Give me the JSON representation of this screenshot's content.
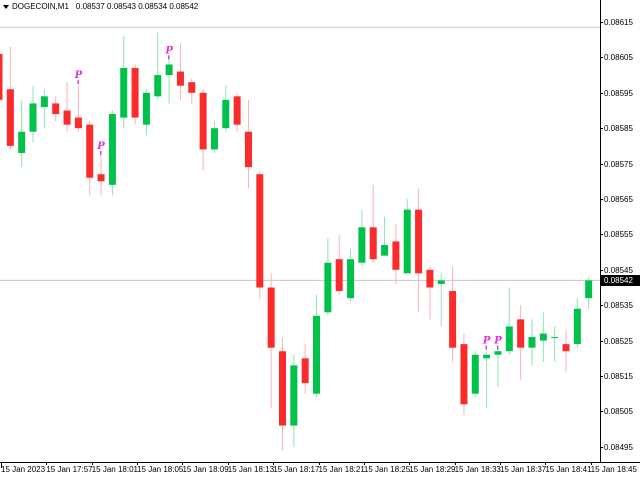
{
  "window": {
    "title": "DOGECOIN,M1",
    "quote_line": "0.08537 0.08543 0.08534 0.08542"
  },
  "colors": {
    "background": "#ffffff",
    "bull_body": "#00c24a",
    "bull_wick": "#8fe6ad",
    "bear_body": "#fa2b2b",
    "bear_wick": "#f9b3b8",
    "marker": "#dd33dd",
    "bid_line": "#c4c7cc",
    "upper_line": "#cbced3",
    "axis": "#000000",
    "bid_box_bg": "#000000",
    "bid_box_text": "#ffffff"
  },
  "chart_data": {
    "type": "candlestick",
    "symbol": "DOGECOIN",
    "timeframe": "M1",
    "title": "DOGECOIN,M1",
    "quote_ohlc": {
      "open": "0.08537",
      "high": "0.08543",
      "low": "0.08534",
      "close": "0.08542"
    },
    "bid": 0.08542,
    "bid_label": "0.08542",
    "upper_level_line": 0.086135,
    "price_axis": {
      "min": 0.08495,
      "max": 0.08615,
      "step": 0.0001,
      "labels": [
        "0.08615",
        "0.08605",
        "0.08595",
        "0.08585",
        "0.08575",
        "0.08565",
        "0.08555",
        "0.08545",
        "0.08535",
        "0.08525",
        "0.08515",
        "0.08505",
        "0.08495"
      ]
    },
    "time_axis": [
      {
        "label": "15 Jan 2023",
        "bar": 0,
        "date": true
      },
      {
        "label": "15 Jan 17:57",
        "bar": 4
      },
      {
        "label": "15 Jan 18:01",
        "bar": 8
      },
      {
        "label": "15 Jan 18:05",
        "bar": 12
      },
      {
        "label": "15 Jan 18:09",
        "bar": 16
      },
      {
        "label": "15 Jan 18:13",
        "bar": 20
      },
      {
        "label": "15 Jan 18:17",
        "bar": 24
      },
      {
        "label": "15 Jan 18:21",
        "bar": 28
      },
      {
        "label": "15 Jan 18:25",
        "bar": 32
      },
      {
        "label": "15 Jan 18:29",
        "bar": 36
      },
      {
        "label": "15 Jan 18:33",
        "bar": 40
      },
      {
        "label": "15 Jan 18:37",
        "bar": 44
      },
      {
        "label": "15 Jan 18:41",
        "bar": 48
      },
      {
        "label": "15 Jan 18:45",
        "bar": 52
      }
    ],
    "candles": [
      {
        "t": "17:53",
        "o": 0.08606,
        "h": 0.08607,
        "l": 0.0859,
        "c": 0.08593
      },
      {
        "t": "17:54",
        "o": 0.08596,
        "h": 0.08608,
        "l": 0.08579,
        "c": 0.0858
      },
      {
        "t": "17:55",
        "o": 0.08578,
        "h": 0.08593,
        "l": 0.08574,
        "c": 0.08584
      },
      {
        "t": "17:56",
        "o": 0.08584,
        "h": 0.08597,
        "l": 0.08581,
        "c": 0.08592
      },
      {
        "t": "17:57",
        "o": 0.08591,
        "h": 0.08596,
        "l": 0.08585,
        "c": 0.08594
      },
      {
        "t": "17:58",
        "o": 0.08592,
        "h": 0.08594,
        "l": 0.08587,
        "c": 0.08589
      },
      {
        "t": "17:59",
        "o": 0.0859,
        "h": 0.08598,
        "l": 0.08584,
        "c": 0.08586
      },
      {
        "t": "18:00",
        "o": 0.08588,
        "h": 0.08597,
        "l": 0.08584,
        "c": 0.08585
      },
      {
        "t": "18:01",
        "o": 0.08586,
        "h": 0.08587,
        "l": 0.08566,
        "c": 0.08571
      },
      {
        "t": "18:02",
        "o": 0.08572,
        "h": 0.08578,
        "l": 0.08566,
        "c": 0.0857
      },
      {
        "t": "18:03",
        "o": 0.08569,
        "h": 0.0859,
        "l": 0.08566,
        "c": 0.08589
      },
      {
        "t": "18:04",
        "o": 0.08588,
        "h": 0.08611,
        "l": 0.08585,
        "c": 0.08602
      },
      {
        "t": "18:05",
        "o": 0.08602,
        "h": 0.08603,
        "l": 0.08586,
        "c": 0.08588
      },
      {
        "t": "18:06",
        "o": 0.08586,
        "h": 0.08596,
        "l": 0.08583,
        "c": 0.08595
      },
      {
        "t": "18:07",
        "o": 0.08594,
        "h": 0.08612,
        "l": 0.08593,
        "c": 0.086
      },
      {
        "t": "18:08",
        "o": 0.086,
        "h": 0.08605,
        "l": 0.08592,
        "c": 0.08603
      },
      {
        "t": "18:09",
        "o": 0.08601,
        "h": 0.08609,
        "l": 0.08593,
        "c": 0.08597
      },
      {
        "t": "18:10",
        "o": 0.08598,
        "h": 0.08599,
        "l": 0.08592,
        "c": 0.08595
      },
      {
        "t": "18:11",
        "o": 0.08595,
        "h": 0.08596,
        "l": 0.08573,
        "c": 0.08579
      },
      {
        "t": "18:12",
        "o": 0.08579,
        "h": 0.08587,
        "l": 0.08578,
        "c": 0.08585
      },
      {
        "t": "18:13",
        "o": 0.08585,
        "h": 0.08597,
        "l": 0.08584,
        "c": 0.08593
      },
      {
        "t": "18:14",
        "o": 0.08594,
        "h": 0.08595,
        "l": 0.08584,
        "c": 0.08586
      },
      {
        "t": "18:15",
        "o": 0.08584,
        "h": 0.08593,
        "l": 0.08568,
        "c": 0.08574
      },
      {
        "t": "18:16",
        "o": 0.08572,
        "h": 0.08573,
        "l": 0.08537,
        "c": 0.0854
      },
      {
        "t": "18:17",
        "o": 0.0854,
        "h": 0.08544,
        "l": 0.08506,
        "c": 0.08523
      },
      {
        "t": "18:18",
        "o": 0.08522,
        "h": 0.08526,
        "l": 0.08494,
        "c": 0.08501
      },
      {
        "t": "18:19",
        "o": 0.08501,
        "h": 0.08521,
        "l": 0.08495,
        "c": 0.08518
      },
      {
        "t": "18:20",
        "o": 0.0852,
        "h": 0.08524,
        "l": 0.0851,
        "c": 0.08513
      },
      {
        "t": "18:21",
        "o": 0.0851,
        "h": 0.08538,
        "l": 0.08509,
        "c": 0.08532
      },
      {
        "t": "18:22",
        "o": 0.08533,
        "h": 0.08554,
        "l": 0.08532,
        "c": 0.08547
      },
      {
        "t": "18:23",
        "o": 0.08548,
        "h": 0.08555,
        "l": 0.08538,
        "c": 0.08539
      },
      {
        "t": "18:24",
        "o": 0.08537,
        "h": 0.08551,
        "l": 0.08536,
        "c": 0.08548
      },
      {
        "t": "18:25",
        "o": 0.08547,
        "h": 0.08562,
        "l": 0.08546,
        "c": 0.08557
      },
      {
        "t": "18:26",
        "o": 0.08557,
        "h": 0.08569,
        "l": 0.08547,
        "c": 0.08548
      },
      {
        "t": "18:27",
        "o": 0.08549,
        "h": 0.0856,
        "l": 0.08549,
        "c": 0.08552
      },
      {
        "t": "18:28",
        "o": 0.08553,
        "h": 0.08558,
        "l": 0.08541,
        "c": 0.08545
      },
      {
        "t": "18:29",
        "o": 0.08544,
        "h": 0.08565,
        "l": 0.08544,
        "c": 0.08562
      },
      {
        "t": "18:30",
        "o": 0.08562,
        "h": 0.08568,
        "l": 0.08533,
        "c": 0.08544
      },
      {
        "t": "18:31",
        "o": 0.08545,
        "h": 0.08546,
        "l": 0.08531,
        "c": 0.0854
      },
      {
        "t": "18:32",
        "o": 0.08541,
        "h": 0.08544,
        "l": 0.08529,
        "c": 0.08542
      },
      {
        "t": "18:33",
        "o": 0.08539,
        "h": 0.08546,
        "l": 0.08519,
        "c": 0.08523
      },
      {
        "t": "18:34",
        "o": 0.08524,
        "h": 0.08527,
        "l": 0.08504,
        "c": 0.08507
      },
      {
        "t": "18:35",
        "o": 0.0851,
        "h": 0.08522,
        "l": 0.08509,
        "c": 0.08521
      },
      {
        "t": "18:36",
        "o": 0.0852,
        "h": 0.08522,
        "l": 0.08506,
        "c": 0.08521
      },
      {
        "t": "18:37",
        "o": 0.08521,
        "h": 0.08523,
        "l": 0.08512,
        "c": 0.08522
      },
      {
        "t": "18:38",
        "o": 0.08522,
        "h": 0.0854,
        "l": 0.08521,
        "c": 0.08529
      },
      {
        "t": "18:39",
        "o": 0.08531,
        "h": 0.08535,
        "l": 0.08514,
        "c": 0.08523
      },
      {
        "t": "18:40",
        "o": 0.08523,
        "h": 0.08531,
        "l": 0.08518,
        "c": 0.08526
      },
      {
        "t": "18:41",
        "o": 0.08525,
        "h": 0.08533,
        "l": 0.08519,
        "c": 0.08527
      },
      {
        "t": "18:42",
        "o": 0.08526,
        "h": 0.08529,
        "l": 0.08519,
        "c": 0.08526
      },
      {
        "t": "18:43",
        "o": 0.08524,
        "h": 0.08528,
        "l": 0.08516,
        "c": 0.08522
      },
      {
        "t": "18:44",
        "o": 0.08524,
        "h": 0.08537,
        "l": 0.08523,
        "c": 0.08534
      },
      {
        "t": "18:45",
        "o": 0.08537,
        "h": 0.08543,
        "l": 0.08534,
        "c": 0.08542
      }
    ],
    "markers": [
      {
        "bar": 7,
        "price": 0.086,
        "glyph": "P"
      },
      {
        "bar": 9,
        "price": 0.0858,
        "glyph": "P"
      },
      {
        "bar": 15,
        "price": 0.08607,
        "glyph": "P"
      },
      {
        "bar": 43,
        "price": 0.08525,
        "glyph": "P"
      },
      {
        "bar": 44,
        "price": 0.08525,
        "glyph": "P"
      }
    ]
  }
}
